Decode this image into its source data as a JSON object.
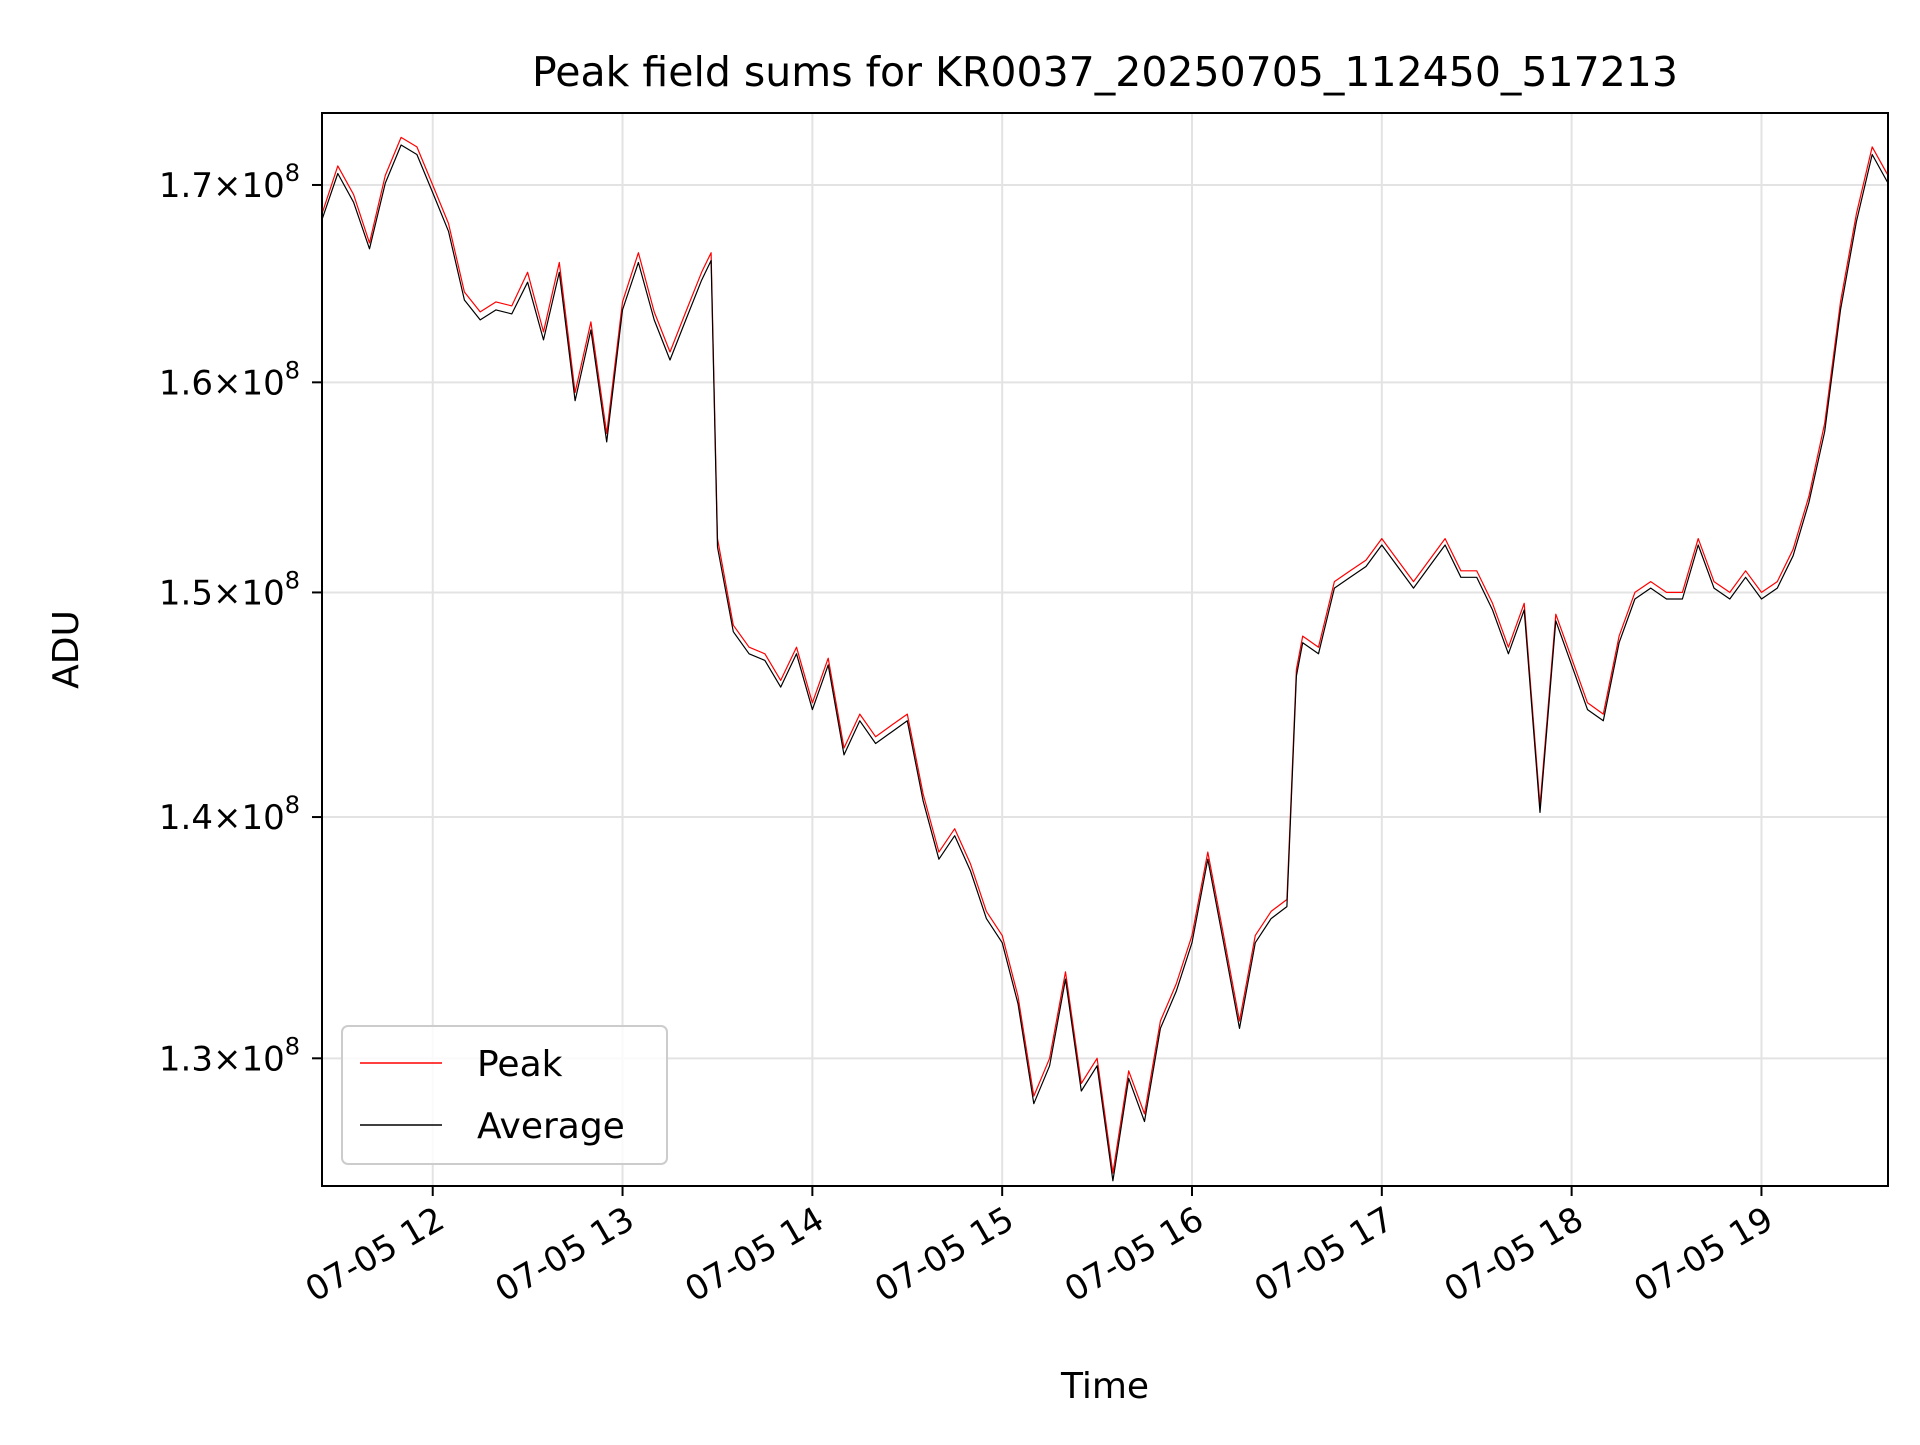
{
  "chart_data": {
    "type": "line",
    "title": "Peak field sums for KR0037_20250705_112450_517213",
    "xlabel": "Time",
    "ylabel": "ADU",
    "y_scale": "log",
    "xlim": [
      "2025-07-05 11:25",
      "2025-07-05 19:40"
    ],
    "ylim": [
      125000000,
      173800000
    ],
    "x_ticks": [
      {
        "value": "2025-07-05 12:00",
        "label": "07-05 12"
      },
      {
        "value": "2025-07-05 13:00",
        "label": "07-05 13"
      },
      {
        "value": "2025-07-05 14:00",
        "label": "07-05 14"
      },
      {
        "value": "2025-07-05 15:00",
        "label": "07-05 15"
      },
      {
        "value": "2025-07-05 16:00",
        "label": "07-05 16"
      },
      {
        "value": "2025-07-05 17:00",
        "label": "07-05 17"
      },
      {
        "value": "2025-07-05 18:00",
        "label": "07-05 18"
      },
      {
        "value": "2025-07-05 19:00",
        "label": "07-05 19"
      }
    ],
    "y_ticks": [
      {
        "value": 130000000,
        "mantissa": "1.3",
        "base": "10",
        "exp": "8"
      },
      {
        "value": 140000000,
        "mantissa": "1.4",
        "base": "10",
        "exp": "8"
      },
      {
        "value": 150000000,
        "mantissa": "1.5",
        "base": "10",
        "exp": "8"
      },
      {
        "value": 160000000,
        "mantissa": "1.6",
        "base": "10",
        "exp": "8"
      },
      {
        "value": 170000000,
        "mantissa": "1.7",
        "base": "10",
        "exp": "8"
      }
    ],
    "grid": true,
    "legend_position": "lower-left",
    "x": [
      "2025-07-05 11:25",
      "2025-07-05 11:30",
      "2025-07-05 11:35",
      "2025-07-05 11:40",
      "2025-07-05 11:45",
      "2025-07-05 11:50",
      "2025-07-05 11:55",
      "2025-07-05 12:00",
      "2025-07-05 12:05",
      "2025-07-05 12:10",
      "2025-07-05 12:15",
      "2025-07-05 12:20",
      "2025-07-05 12:25",
      "2025-07-05 12:30",
      "2025-07-05 12:35",
      "2025-07-05 12:40",
      "2025-07-05 12:45",
      "2025-07-05 12:50",
      "2025-07-05 12:55",
      "2025-07-05 13:00",
      "2025-07-05 13:05",
      "2025-07-05 13:10",
      "2025-07-05 13:15",
      "2025-07-05 13:20",
      "2025-07-05 13:25",
      "2025-07-05 13:28",
      "2025-07-05 13:30",
      "2025-07-05 13:35",
      "2025-07-05 13:40",
      "2025-07-05 13:45",
      "2025-07-05 13:50",
      "2025-07-05 13:55",
      "2025-07-05 14:00",
      "2025-07-05 14:05",
      "2025-07-05 14:10",
      "2025-07-05 14:15",
      "2025-07-05 14:20",
      "2025-07-05 14:25",
      "2025-07-05 14:30",
      "2025-07-05 14:35",
      "2025-07-05 14:40",
      "2025-07-05 14:45",
      "2025-07-05 14:50",
      "2025-07-05 14:55",
      "2025-07-05 15:00",
      "2025-07-05 15:05",
      "2025-07-05 15:10",
      "2025-07-05 15:15",
      "2025-07-05 15:20",
      "2025-07-05 15:25",
      "2025-07-05 15:30",
      "2025-07-05 15:35",
      "2025-07-05 15:40",
      "2025-07-05 15:45",
      "2025-07-05 15:50",
      "2025-07-05 15:55",
      "2025-07-05 16:00",
      "2025-07-05 16:05",
      "2025-07-05 16:10",
      "2025-07-05 16:15",
      "2025-07-05 16:20",
      "2025-07-05 16:25",
      "2025-07-05 16:30",
      "2025-07-05 16:33",
      "2025-07-05 16:35",
      "2025-07-05 16:40",
      "2025-07-05 16:45",
      "2025-07-05 16:50",
      "2025-07-05 16:55",
      "2025-07-05 17:00",
      "2025-07-05 17:05",
      "2025-07-05 17:10",
      "2025-07-05 17:15",
      "2025-07-05 17:20",
      "2025-07-05 17:25",
      "2025-07-05 17:30",
      "2025-07-05 17:35",
      "2025-07-05 17:40",
      "2025-07-05 17:45",
      "2025-07-05 17:50",
      "2025-07-05 17:55",
      "2025-07-05 18:00",
      "2025-07-05 18:05",
      "2025-07-05 18:10",
      "2025-07-05 18:15",
      "2025-07-05 18:20",
      "2025-07-05 18:25",
      "2025-07-05 18:30",
      "2025-07-05 18:35",
      "2025-07-05 18:40",
      "2025-07-05 18:45",
      "2025-07-05 18:50",
      "2025-07-05 18:55",
      "2025-07-05 19:00",
      "2025-07-05 19:05",
      "2025-07-05 19:10",
      "2025-07-05 19:15",
      "2025-07-05 19:20",
      "2025-07-05 19:25",
      "2025-07-05 19:30",
      "2025-07-05 19:35",
      "2025-07-05 19:40"
    ],
    "series": [
      {
        "name": "Peak",
        "color": "#ff0000",
        "line_width": 1.2,
        "values": [
          168500000,
          171000000,
          169500000,
          167000000,
          170500000,
          172500000,
          172000000,
          170000000,
          168000000,
          164500000,
          163500000,
          164000000,
          163800000,
          165500000,
          162500000,
          166000000,
          159500000,
          163000000,
          157500000,
          164000000,
          166500000,
          163500000,
          161500000,
          163500000,
          165500000,
          166500000,
          152500000,
          148500000,
          147500000,
          147200000,
          146000000,
          147500000,
          145000000,
          147000000,
          143000000,
          144500000,
          143500000,
          144000000,
          144500000,
          141000000,
          138500000,
          139500000,
          138000000,
          136000000,
          135000000,
          132500000,
          128500000,
          130000000,
          133500000,
          129000000,
          130000000,
          125500000,
          129500000,
          127800000,
          131500000,
          133000000,
          135000000,
          138500000,
          135000000,
          131500000,
          135000000,
          136000000,
          136500000,
          146500000,
          148000000,
          147500000,
          150500000,
          151000000,
          151500000,
          152500000,
          151500000,
          150500000,
          151500000,
          152500000,
          151000000,
          151000000,
          149500000,
          147500000,
          149500000,
          140500000,
          149000000,
          147000000,
          145000000,
          144500000,
          148000000,
          150000000,
          150500000,
          150000000,
          150000000,
          152500000,
          150500000,
          150000000,
          151000000,
          150000000,
          150500000,
          152000000,
          154500000,
          158000000,
          164000000,
          168500000,
          172000000,
          170500000
        ]
      },
      {
        "name": "Average",
        "color": "#000000",
        "line_width": 1.2,
        "values": [
          168200000,
          170600000,
          169100000,
          166700000,
          170100000,
          172100000,
          171600000,
          169600000,
          167600000,
          164100000,
          163100000,
          163600000,
          163400000,
          165000000,
          162100000,
          165500000,
          159100000,
          162600000,
          157100000,
          163600000,
          166000000,
          163100000,
          161100000,
          163100000,
          165100000,
          166100000,
          152100000,
          148200000,
          147200000,
          146900000,
          145700000,
          147200000,
          144700000,
          146700000,
          142700000,
          144200000,
          143200000,
          143700000,
          144200000,
          140700000,
          138200000,
          139200000,
          137700000,
          135700000,
          134700000,
          132200000,
          128200000,
          129700000,
          133200000,
          128700000,
          129700000,
          125200000,
          129200000,
          127500000,
          131200000,
          132700000,
          134700000,
          138200000,
          134700000,
          131200000,
          134700000,
          135700000,
          136200000,
          146200000,
          147700000,
          147200000,
          150200000,
          150700000,
          151200000,
          152200000,
          151200000,
          150200000,
          151200000,
          152200000,
          150700000,
          150700000,
          149200000,
          147200000,
          149200000,
          140200000,
          148700000,
          146700000,
          144700000,
          144200000,
          147700000,
          149700000,
          150200000,
          149700000,
          149700000,
          152200000,
          150200000,
          149700000,
          150700000,
          149700000,
          150200000,
          151700000,
          154200000,
          157600000,
          163600000,
          168100000,
          171600000,
          170100000
        ]
      }
    ]
  }
}
